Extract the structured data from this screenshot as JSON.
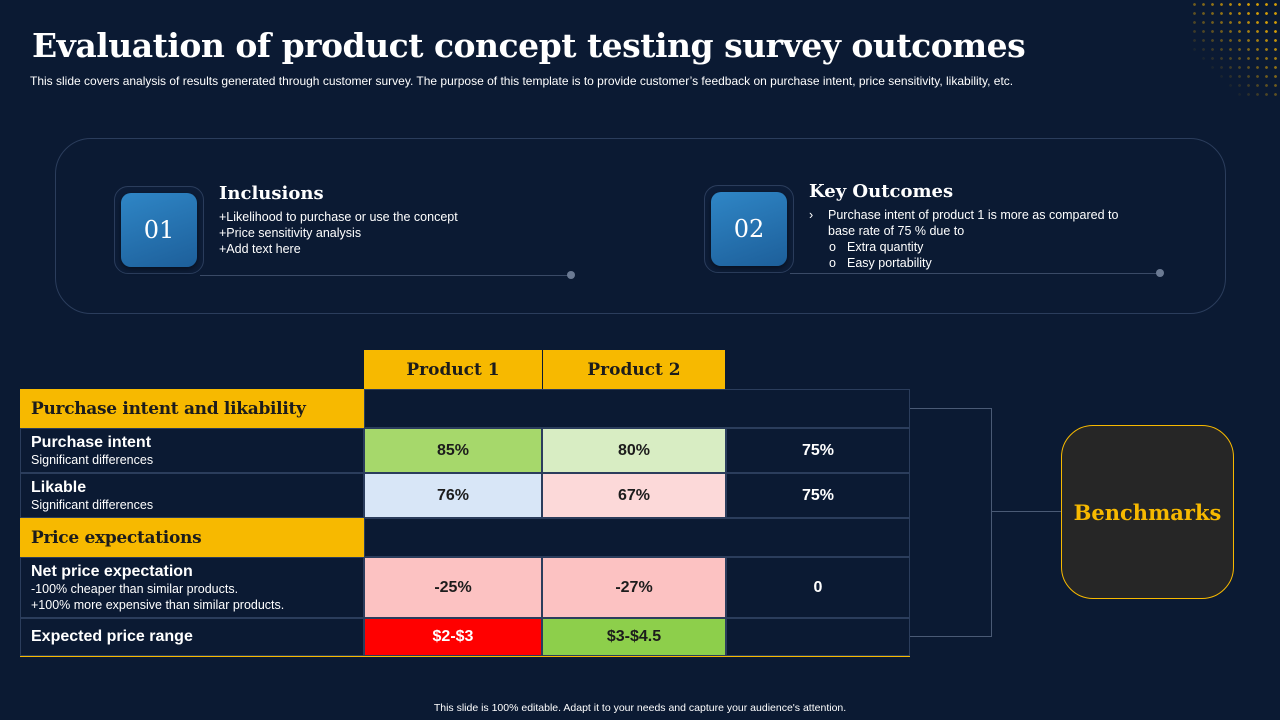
{
  "title": "Evaluation of product concept testing survey outcomes",
  "subtitle": "This slide covers analysis of results generated through customer survey. The purpose of this template is to provide customer’s feedback on purchase intent, price sensitivity, likability, etc.",
  "inclusions": {
    "number": "01",
    "heading": "Inclusions",
    "lines": [
      "+Likelihood to purchase or use the concept",
      "+Price sensitivity analysis",
      "+Add text here"
    ]
  },
  "outcomes": {
    "number": "02",
    "heading": "Key Outcomes",
    "bullet_marker": "›",
    "bullet_line1": "Purchase intent of product 1 is more as compared to",
    "bullet_line2": "base rate of 75 % due to",
    "sub_marker": "o",
    "sub_items": [
      "Extra quantity",
      "Easy portability"
    ]
  },
  "table": {
    "col_headers": [
      "Product 1",
      "Product 2"
    ],
    "cat1": "Purchase intent and likability",
    "cat2": "Price expectations",
    "rows": [
      {
        "label": "Purchase intent",
        "sub": [
          "Significant differences"
        ],
        "p1": "85%",
        "p2": "80%",
        "bench": "75%",
        "p1_color": "#a6d86b",
        "p2_color": "#d8edc3"
      },
      {
        "label": "Likable",
        "sub": [
          "Significant differences"
        ],
        "p1": "76%",
        "p2": "67%",
        "bench": "75%",
        "p1_color": "#d8e6f7",
        "p2_color": "#fcd9d9"
      },
      {
        "label": "Net price expectation",
        "sub": [
          "-100% cheaper than similar products.",
          "+100% more expensive  than similar products."
        ],
        "p1": "-25%",
        "p2": "-27%",
        "bench": "0",
        "p1_color": "#fcc2c2",
        "p2_color": "#fcc2c2"
      },
      {
        "label": "Expected price range",
        "sub": [],
        "p1": "$2-$3",
        "p2": "$3-$4.5",
        "bench": "",
        "p1_color": "#ff0000",
        "p2_color": "#8dcf4b"
      }
    ]
  },
  "benchmarks_label": "Benchmarks",
  "footer": "This slide is 100% editable.  Adapt it to your needs and capture your audience's attention.",
  "colors": {
    "background": "#0b1a33",
    "accent": "#f7b900",
    "badge": "#2f86c6"
  }
}
